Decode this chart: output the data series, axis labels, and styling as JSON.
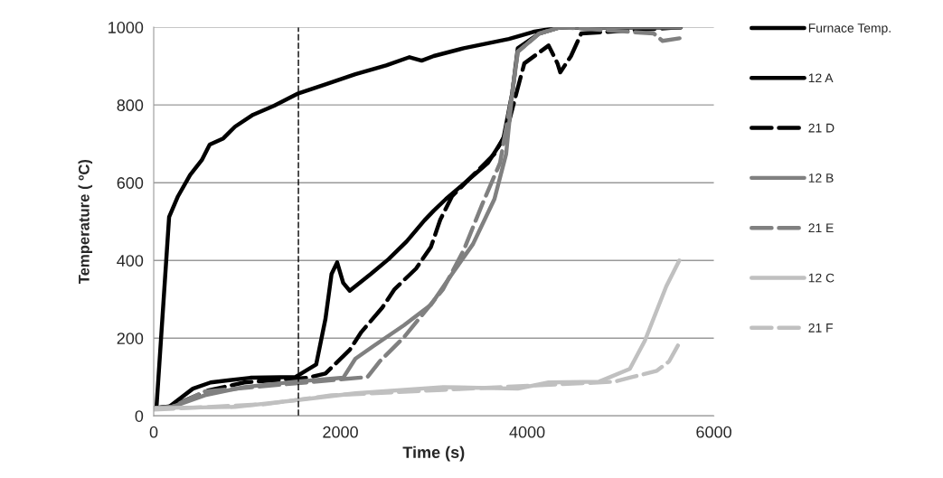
{
  "chart_data": {
    "type": "line",
    "xlabel": "Time (s)",
    "ylabel": "Temperature ( ºC)",
    "xlim": [
      0,
      6000
    ],
    "xticks": [
      0,
      2000,
      4000,
      6000
    ],
    "ylim": [
      0,
      1000
    ],
    "yticks": [
      0,
      200,
      400,
      600,
      800,
      1000
    ],
    "grid": "y",
    "legend": "right",
    "marker": "none",
    "ref_lines": [
      {
        "axis": "x",
        "value": 1550,
        "color": "#000000",
        "line_style": "dashed"
      }
    ],
    "series": [
      {
        "name": "Furnace Temp.",
        "color": "#000000",
        "line_style": "solid",
        "x": [
          0,
          30,
          165,
          260,
          390,
          515,
          600,
          745,
          870,
          1065,
          1290,
          1550,
          1840,
          2160,
          2490,
          2740,
          2870,
          3000,
          3320,
          3805,
          4065,
          4355,
          4935,
          5645
        ],
        "values": [
          20,
          23,
          512,
          565,
          620,
          658,
          698,
          714,
          744,
          775,
          798,
          830,
          853,
          879,
          902,
          923,
          914,
          926,
          946,
          970,
          988,
          1000,
          1000,
          1000
        ]
      },
      {
        "name": "12 A",
        "color": "#000000",
        "line_style": "solid",
        "x": [
          0,
          165,
          420,
          610,
          1035,
          1520,
          1740,
          1840,
          1905,
          1965,
          2030,
          2100,
          2325,
          2515,
          2710,
          2900,
          3000,
          3130,
          3320,
          3580,
          3745,
          3840,
          3900,
          4130,
          4355,
          5645
        ],
        "values": [
          20,
          23,
          70,
          86,
          98,
          100,
          132,
          250,
          365,
          395,
          342,
          322,
          365,
          403,
          449,
          503,
          528,
          558,
          597,
          651,
          713,
          830,
          946,
          984,
          1000,
          1000
        ]
      },
      {
        "name": "21 D",
        "color": "#000000",
        "line_style": "dashed",
        "x": [
          0,
          195,
          360,
          580,
          970,
          1645,
          1840,
          2100,
          2225,
          2450,
          2580,
          2810,
          2970,
          3070,
          3195,
          3390,
          3650,
          3775,
          3900,
          3970,
          4230,
          4325,
          4355,
          4470,
          4580,
          5645
        ],
        "values": [
          20,
          25,
          42,
          65,
          86,
          98,
          109,
          170,
          216,
          279,
          326,
          379,
          435,
          505,
          565,
          612,
          674,
          728,
          844,
          907,
          953,
          907,
          884,
          926,
          984,
          1000
        ]
      },
      {
        "name": "12 B",
        "color": "#808080",
        "line_style": "solid",
        "x": [
          0,
          195,
          550,
          970,
          1520,
          2030,
          2160,
          2350,
          2680,
          2970,
          3195,
          3420,
          3650,
          3775,
          3840,
          3900,
          4130,
          4355,
          5645
        ],
        "values": [
          20,
          23,
          53,
          74,
          88,
          98,
          147,
          179,
          233,
          286,
          365,
          442,
          558,
          674,
          830,
          937,
          984,
          1000,
          1000
        ]
      },
      {
        "name": "21 E",
        "color": "#808080",
        "line_style": "dashed",
        "x": [
          0,
          195,
          550,
          2290,
          2420,
          2680,
          3100,
          3320,
          3515,
          3710,
          3840,
          3900,
          4130,
          4355,
          5355,
          5450,
          5645
        ],
        "values": [
          20,
          23,
          63,
          100,
          140,
          202,
          326,
          426,
          542,
          651,
          830,
          937,
          984,
          1000,
          984,
          965,
          972
        ]
      },
      {
        "name": "12 C",
        "color": "#c0c0c0",
        "line_style": "solid",
        "x": [
          0,
          870,
          1520,
          2160,
          3100,
          3900,
          4230,
          4770,
          5100,
          5260,
          5490,
          5630
        ],
        "values": [
          20,
          23,
          40,
          58,
          74,
          70,
          86,
          88,
          121,
          193,
          333,
          400
        ]
      },
      {
        "name": "21 F",
        "color": "#c0c0c0",
        "line_style": "dashed",
        "x": [
          0,
          1190,
          1905,
          3100,
          4935,
          5130,
          5390,
          5520,
          5615
        ],
        "values": [
          16,
          30,
          53,
          67,
          88,
          100,
          116,
          140,
          181
        ]
      }
    ]
  }
}
